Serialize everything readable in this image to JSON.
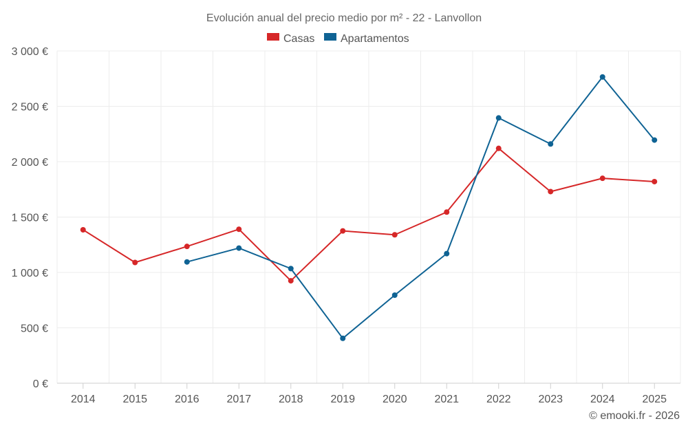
{
  "chart_data": {
    "type": "line",
    "title": "Evolución anual del precio medio por m² - 22 - Lanvollon",
    "xlabel": "",
    "ylabel": "",
    "categories": [
      "2014",
      "2015",
      "2016",
      "2017",
      "2018",
      "2019",
      "2020",
      "2021",
      "2022",
      "2023",
      "2024",
      "2025"
    ],
    "ylim": [
      0,
      3000
    ],
    "yticks": [
      0,
      500,
      1000,
      1500,
      2000,
      2500,
      3000
    ],
    "ytick_labels": [
      "0 €",
      "500 €",
      "1 000 €",
      "1 500 €",
      "2 000 €",
      "2 500 €",
      "3 000 €"
    ],
    "grid": true,
    "legend_position": "top-center",
    "series": [
      {
        "name": "Casas",
        "color": "#d62728",
        "values": [
          1385,
          1090,
          1235,
          1390,
          925,
          1375,
          1340,
          1545,
          2120,
          1730,
          1850,
          1820
        ]
      },
      {
        "name": "Apartamentos",
        "color": "#0f6394",
        "values": [
          null,
          null,
          1095,
          1220,
          1035,
          405,
          795,
          1170,
          2395,
          2160,
          2765,
          2195
        ]
      }
    ]
  },
  "credit": "© emooki.fr - 2026"
}
